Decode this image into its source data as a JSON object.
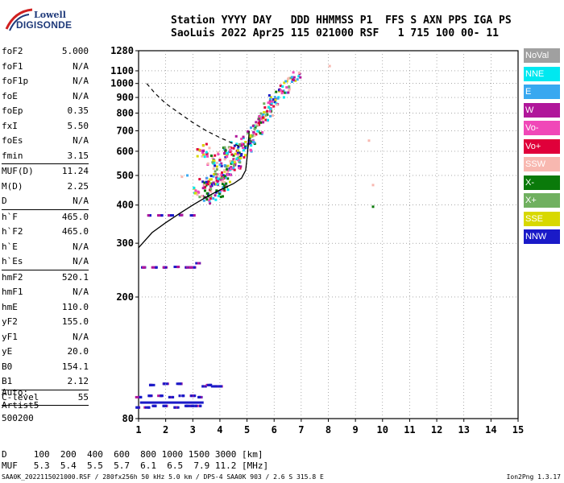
{
  "logo": {
    "line1": "Lowell",
    "line2": "DIGISONDE"
  },
  "header": {
    "line1": "Station YYYY DAY   DDD HHMMSS P1  FFS S AXN PPS IGA PS",
    "line2": "SaoLuis 2022 Apr25 115 021000 RSF   1 715 100 00- 11"
  },
  "params": {
    "group1": [
      {
        "label": "foF2",
        "value": "5.000"
      },
      {
        "label": "foF1",
        "value": "N/A"
      },
      {
        "label": "foF1p",
        "value": "N/A"
      },
      {
        "label": "foE",
        "value": "N/A"
      },
      {
        "label": "foEp",
        "value": "0.35"
      },
      {
        "label": "fxI",
        "value": "5.50"
      },
      {
        "label": "foEs",
        "value": "N/A"
      },
      {
        "label": "fmin",
        "value": "3.15"
      }
    ],
    "group2": [
      {
        "label": "MUF(D)",
        "value": "11.24"
      },
      {
        "label": "M(D)",
        "value": "2.25"
      },
      {
        "label": "D",
        "value": "N/A"
      }
    ],
    "group3": [
      {
        "label": "h`F",
        "value": "465.0"
      },
      {
        "label": "h`F2",
        "value": "465.0"
      },
      {
        "label": "h`E",
        "value": "N/A"
      },
      {
        "label": "h`Es",
        "value": "N/A"
      }
    ],
    "group4": [
      {
        "label": "hmF2",
        "value": "520.1"
      },
      {
        "label": "hmF1",
        "value": "N/A"
      },
      {
        "label": "hmE",
        "value": "110.0"
      },
      {
        "label": "yF2",
        "value": "155.0"
      },
      {
        "label": "yF1",
        "value": "N/A"
      },
      {
        "label": "yE",
        "value": "20.0"
      },
      {
        "label": "B0",
        "value": "154.1"
      },
      {
        "label": "B1",
        "value": "2.12"
      }
    ],
    "group5": [
      {
        "label": "C-level",
        "value": "55"
      }
    ]
  },
  "auto": {
    "line1": "Auto:",
    "line2": "Artist5",
    "line3": "500200"
  },
  "legend": [
    {
      "label": "NoVal",
      "color": "#a0a0a0"
    },
    {
      "label": "NNE",
      "color": "#00e8f0"
    },
    {
      "label": "E",
      "color": "#38a8f0"
    },
    {
      "label": "W",
      "color": "#b0169a"
    },
    {
      "label": "Vo-",
      "color": "#f048b8"
    },
    {
      "label": "Vo+",
      "color": "#e0003a"
    },
    {
      "label": "SSW",
      "color": "#f8b8b0"
    },
    {
      "label": "X-",
      "color": "#0a7a0a"
    },
    {
      "label": "X+",
      "color": "#70b060"
    },
    {
      "label": "SSE",
      "color": "#d8d800"
    },
    {
      "label": "NNW",
      "color": "#1a1ac8"
    }
  ],
  "muf_table": {
    "d_label": "D",
    "distances": [
      "100",
      "200",
      "400",
      "600",
      "800",
      "1000",
      "1500",
      "3000"
    ],
    "d_unit": "[km]",
    "muf_label": "MUF",
    "mufs": [
      "5.3",
      "5.4",
      "5.5",
      "5.7",
      "6.1",
      "6.5",
      "7.9",
      "11.2"
    ],
    "muf_unit": "[MHz]"
  },
  "footer": {
    "text": "SAA0K_2022115021000.RSF / 280fx256h 50 kHz 5.0 km / DPS-4 SAA0K 903 / 2.6 S 315.8 E",
    "version": "Ion2Png 1.3.17"
  },
  "chart_data": {
    "type": "scatter",
    "xlim": [
      1,
      15
    ],
    "ylim": [
      80,
      1280
    ],
    "xticks": [
      "1",
      "2",
      "3",
      "4",
      "5",
      "6",
      "7",
      "8",
      "9",
      "10",
      "11",
      "12",
      "13",
      "14",
      "15"
    ],
    "yticks": [
      "80",
      "200",
      "300",
      "400",
      "500",
      "600",
      "700",
      "800",
      "900",
      "1000",
      "1100",
      "1280"
    ],
    "y_scale": "log",
    "grid": true,
    "profile_line": [
      [
        1.0,
        290
      ],
      [
        1.5,
        325
      ],
      [
        2.0,
        350
      ],
      [
        2.5,
        375
      ],
      [
        3.0,
        400
      ],
      [
        3.5,
        425
      ],
      [
        4.0,
        448
      ],
      [
        4.5,
        470
      ],
      [
        4.8,
        490
      ],
      [
        4.95,
        520
      ],
      [
        5.0,
        570
      ],
      [
        5.05,
        640
      ],
      [
        5.08,
        700
      ]
    ],
    "dashed_line": [
      [
        1.3,
        1000
      ],
      [
        1.6,
        930
      ],
      [
        2.0,
        860
      ],
      [
        2.5,
        800
      ],
      [
        3.0,
        745
      ],
      [
        3.5,
        700
      ],
      [
        4.0,
        665
      ],
      [
        4.5,
        635
      ],
      [
        4.8,
        618
      ]
    ],
    "echo_traces": [
      {
        "name": "F2-O",
        "points": [
          [
            3.2,
            440
          ],
          [
            3.4,
            470
          ],
          [
            3.6,
            480
          ],
          [
            3.8,
            490
          ],
          [
            4.0,
            505
          ],
          [
            4.2,
            520
          ],
          [
            4.4,
            540
          ],
          [
            4.6,
            570
          ],
          [
            4.8,
            600
          ],
          [
            5.0,
            640
          ],
          [
            5.2,
            690
          ],
          [
            5.4,
            740
          ],
          [
            5.6,
            790
          ],
          [
            5.8,
            840
          ],
          [
            6.0,
            880
          ]
        ]
      },
      {
        "name": "F2-X",
        "points": [
          [
            3.8,
            460
          ],
          [
            4.0,
            475
          ],
          [
            4.2,
            500
          ],
          [
            4.4,
            520
          ],
          [
            4.6,
            545
          ],
          [
            4.8,
            580
          ],
          [
            5.0,
            620
          ],
          [
            5.2,
            660
          ],
          [
            5.4,
            710
          ],
          [
            5.6,
            760
          ],
          [
            5.8,
            810
          ],
          [
            6.0,
            860
          ],
          [
            6.2,
            920
          ],
          [
            6.4,
            970
          ],
          [
            6.6,
            1010
          ],
          [
            6.8,
            1050
          ]
        ]
      },
      {
        "name": "spread",
        "points": [
          [
            3.3,
            590
          ],
          [
            3.5,
            610
          ],
          [
            3.7,
            560
          ],
          [
            3.9,
            540
          ],
          [
            4.1,
            580
          ],
          [
            4.3,
            600
          ],
          [
            4.5,
            620
          ],
          [
            4.7,
            650
          ],
          [
            3.5,
            430
          ],
          [
            3.7,
            420
          ],
          [
            4.0,
            440
          ],
          [
            4.2,
            460
          ]
        ]
      },
      {
        "name": "low-trace",
        "points": [
          [
            1.0,
            87
          ],
          [
            1.3,
            87
          ],
          [
            1.6,
            88
          ],
          [
            2.0,
            88
          ],
          [
            2.4,
            87
          ],
          [
            2.8,
            88
          ],
          [
            3.0,
            88
          ],
          [
            3.2,
            88
          ]
        ]
      },
      {
        "name": "low-trace-2",
        "points": [
          [
            1.0,
            94
          ],
          [
            1.4,
            95
          ],
          [
            1.8,
            95
          ],
          [
            2.2,
            94
          ],
          [
            2.6,
            95
          ],
          [
            3.0,
            95
          ],
          [
            3.3,
            94
          ],
          [
            3.4,
            102
          ],
          [
            3.6,
            103
          ],
          [
            3.8,
            102
          ],
          [
            4.0,
            102
          ],
          [
            1.5,
            103
          ],
          [
            2.0,
            104
          ],
          [
            2.5,
            104
          ]
        ]
      },
      {
        "name": "Es-250",
        "points": [
          [
            1.2,
            250
          ],
          [
            1.6,
            250
          ],
          [
            2.0,
            250
          ],
          [
            2.4,
            251
          ],
          [
            2.8,
            250
          ],
          [
            3.0,
            250
          ],
          [
            3.2,
            258
          ]
        ]
      },
      {
        "name": "Es-370",
        "points": [
          [
            1.4,
            370
          ],
          [
            1.8,
            370
          ],
          [
            2.2,
            370
          ],
          [
            2.6,
            371
          ],
          [
            3.0,
            370
          ]
        ]
      },
      {
        "name": "isolated",
        "points": [
          [
            8.05,
            1140
          ],
          [
            9.5,
            650
          ],
          [
            9.65,
            465
          ],
          [
            9.65,
            395
          ],
          [
            2.6,
            495
          ],
          [
            2.8,
            500
          ]
        ]
      }
    ]
  }
}
